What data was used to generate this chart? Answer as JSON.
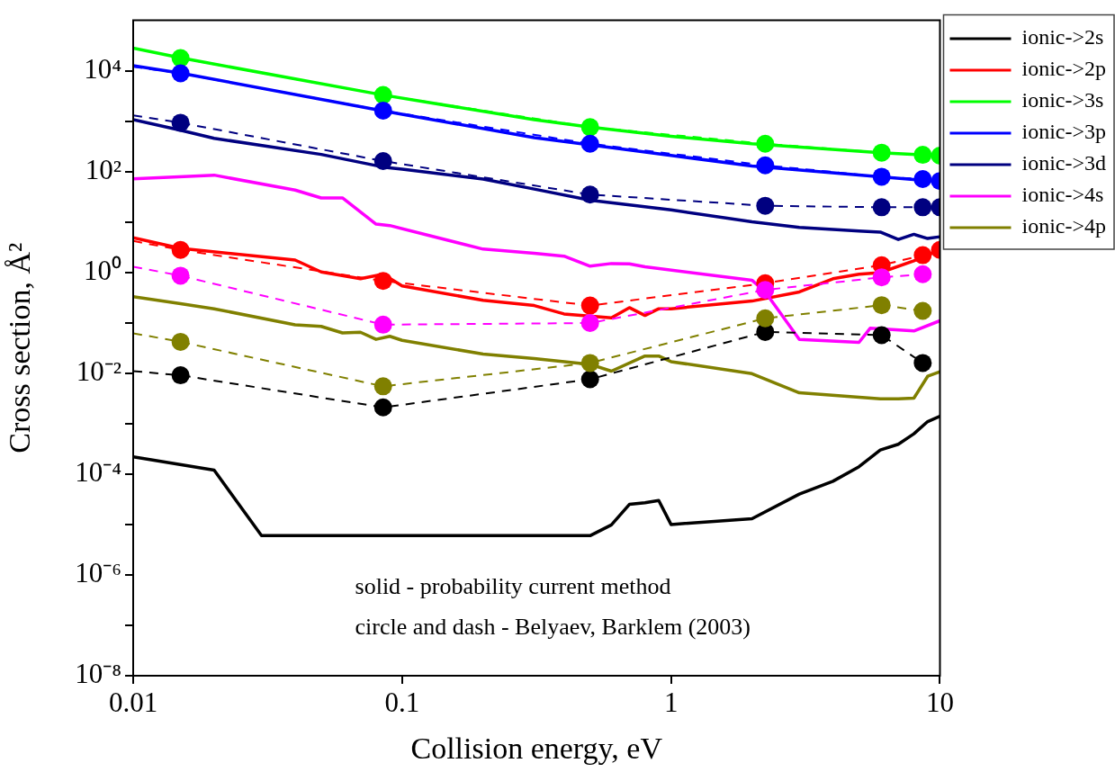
{
  "chart_data": {
    "type": "line",
    "xlabel": "Collision energy, eV",
    "ylabel": "Cross section, Å²",
    "log": "xy",
    "grid": false,
    "legend": "top right",
    "line_style": "solid",
    "xlim": [
      0.01,
      10
    ],
    "xticks": [
      0.01,
      0.1,
      1,
      10
    ],
    "ylim": [
      1e-08,
      100000
    ],
    "yticks": [
      {
        "value": 1e-08,
        "label": "10⁻⁸"
      },
      {
        "value": 1e-07,
        "label": null
      },
      {
        "value": 1e-06,
        "label": "10⁻⁶"
      },
      {
        "value": 1e-05,
        "label": null
      },
      {
        "value": 0.0001,
        "label": "10⁻⁴"
      },
      {
        "value": 0.001,
        "label": null
      },
      {
        "value": 0.01,
        "label": "10⁻²"
      },
      {
        "value": 0.1,
        "label": null
      },
      {
        "value": 1,
        "label": "10⁰"
      },
      {
        "value": 10,
        "label": null
      },
      {
        "value": 100,
        "label": "10²"
      },
      {
        "value": 1000,
        "label": null
      },
      {
        "value": 10000,
        "label": "10⁴"
      }
    ],
    "annotations": [
      "solid - probability current method",
      "circle and dash - Belyaev, Barklem (2003)"
    ],
    "series": [
      {
        "name": "ionic->2s",
        "color": "#000000",
        "type": "line",
        "marker": "none",
        "x": [
          0.01,
          0.02,
          0.03,
          0.5,
          0.6,
          0.7,
          0.8,
          0.9,
          1,
          2,
          3,
          4,
          5,
          6,
          7,
          8,
          9,
          10
        ],
        "values": [
          0.00022,
          0.00012,
          6e-06,
          6e-06,
          9.8e-06,
          2.5e-05,
          2.7e-05,
          3e-05,
          1e-05,
          1.3e-05,
          4e-05,
          7.2e-05,
          0.00014,
          0.0003,
          0.00039,
          0.00063,
          0.0011,
          0.0014
        ]
      },
      {
        "name": "ionic->2p",
        "color": "#ff0000",
        "type": "line",
        "marker": "none",
        "x": [
          0.01,
          0.015,
          0.04,
          0.05,
          0.07,
          0.085,
          0.1,
          0.2,
          0.31,
          0.4,
          0.6,
          0.7,
          0.8,
          0.9,
          1,
          2,
          3,
          4,
          5,
          6,
          8,
          10
        ],
        "values": [
          4.9,
          3.0,
          1.76,
          1.02,
          0.75,
          0.92,
          0.54,
          0.28,
          0.22,
          0.15,
          0.126,
          0.2,
          0.14,
          0.19,
          0.19,
          0.27,
          0.41,
          0.75,
          0.92,
          0.99,
          1.7,
          2.8
        ]
      },
      {
        "name": "ionic->3s",
        "color": "#00ff00",
        "type": "line",
        "marker": "none",
        "x": [
          0.01,
          0.015,
          0.085,
          0.31,
          0.5,
          1,
          2,
          6,
          10
        ],
        "values": [
          28000,
          18000,
          3300,
          1070,
          760,
          500,
          355,
          237,
          205
        ]
      },
      {
        "name": "ionic->3p",
        "color": "#0000ff",
        "type": "line",
        "marker": "none",
        "x": [
          0.01,
          0.015,
          0.085,
          0.31,
          0.5,
          1,
          2,
          6,
          10
        ],
        "values": [
          12600,
          9000,
          1600,
          470,
          340,
          209,
          129,
          79,
          63
        ]
      },
      {
        "name": "ionic->3d",
        "color": "#000080",
        "type": "line",
        "marker": "none",
        "x": [
          0.01,
          0.015,
          0.02,
          0.05,
          0.085,
          0.1,
          0.2,
          0.31,
          0.5,
          1,
          2,
          3,
          5,
          6,
          7,
          8,
          9,
          10
        ],
        "values": [
          1070,
          660,
          457,
          219,
          123,
          112,
          71,
          45,
          27,
          17.4,
          10.1,
          7.8,
          6.6,
          6.3,
          4.5,
          5.7,
          4.7,
          5.1
        ]
      },
      {
        "name": "ionic->4s",
        "color": "#ff00ff",
        "type": "line",
        "marker": "none",
        "x": [
          0.01,
          0.02,
          0.04,
          0.05,
          0.06,
          0.08,
          0.09,
          0.2,
          0.31,
          0.4,
          0.5,
          0.6,
          0.7,
          0.8,
          2,
          2.24,
          3,
          5,
          5.5,
          8,
          10
        ],
        "values": [
          72,
          85,
          43,
          30,
          30,
          9.1,
          8.5,
          2.9,
          2.4,
          2.1,
          1.33,
          1.5,
          1.48,
          1.29,
          0.7,
          0.41,
          0.047,
          0.041,
          0.078,
          0.069,
          0.11
        ]
      },
      {
        "name": "ionic->4p",
        "color": "#808000",
        "type": "line",
        "marker": "none",
        "x": [
          0.01,
          0.015,
          0.02,
          0.04,
          0.05,
          0.06,
          0.07,
          0.08,
          0.09,
          0.1,
          0.2,
          0.31,
          0.5,
          0.6,
          0.8,
          0.9,
          1,
          2,
          3,
          6,
          7,
          8,
          9,
          10
        ],
        "values": [
          0.33,
          0.24,
          0.19,
          0.091,
          0.085,
          0.063,
          0.065,
          0.047,
          0.054,
          0.045,
          0.024,
          0.0195,
          0.015,
          0.011,
          0.022,
          0.022,
          0.017,
          0.0098,
          0.0041,
          0.0031,
          0.0031,
          0.0032,
          0.0087,
          0.0107
        ]
      },
      {
        "color": "#000000",
        "type": "line",
        "line_style": "dashed",
        "marker": "none",
        "x": [
          0.01,
          0.015,
          0.085,
          0.5,
          2.24,
          6.07,
          8.63
        ],
        "values": [
          0.011,
          0.0091,
          0.0021,
          0.0076,
          0.066,
          0.057,
          0.016
        ]
      },
      {
        "color": "#ff0000",
        "type": "line",
        "line_style": "dashed",
        "marker": "none",
        "x": [
          0.01,
          0.015,
          0.085,
          0.5,
          2.24,
          6.07,
          8.63,
          10
        ],
        "values": [
          4.2,
          2.8,
          0.68,
          0.22,
          0.61,
          1.39,
          2.2,
          2.8
        ]
      },
      {
        "color": "#00ff00",
        "type": "line",
        "line_style": "dashed",
        "marker": "none",
        "x": [
          0.015,
          0.085,
          0.5,
          2.24,
          6.07,
          8.63,
          10
        ],
        "values": [
          17800,
          3300,
          760,
          357,
          237,
          215,
          207
        ]
      },
      {
        "color": "#0000ff",
        "type": "line",
        "line_style": "dashed",
        "marker": "none",
        "x": [
          0.01,
          0.015,
          0.085,
          0.5,
          2.24,
          6.07,
          8.63,
          10
        ],
        "values": [
          12000,
          8900,
          1620,
          357,
          133,
          79,
          71,
          65
        ]
      },
      {
        "color": "#000080",
        "type": "line",
        "line_style": "dashed",
        "marker": "none",
        "x": [
          0.01,
          0.015,
          0.085,
          0.5,
          2.24,
          6.07,
          8.63,
          10
        ],
        "values": [
          1300,
          930,
          162,
          35,
          21,
          19.6,
          19.6,
          19.6
        ]
      },
      {
        "color": "#ff00ff",
        "type": "line",
        "line_style": "dashed",
        "marker": "none",
        "x": [
          0.01,
          0.015,
          0.085,
          0.5,
          2.24,
          6.07,
          8.63
        ],
        "values": [
          1.3,
          0.86,
          0.092,
          0.099,
          0.45,
          0.8,
          0.92
        ]
      },
      {
        "color": "#808000",
        "type": "line",
        "line_style": "dashed",
        "marker": "none",
        "x": [
          0.01,
          0.015,
          0.085,
          0.5,
          2.24,
          6.07,
          8.63
        ],
        "values": [
          0.062,
          0.042,
          0.0055,
          0.016,
          0.123,
          0.224,
          0.173
        ]
      },
      {
        "color": "#000000",
        "type": "scatter",
        "marker": "circle",
        "x": [
          0.015,
          0.085,
          0.5,
          2.24,
          6.07,
          8.63
        ],
        "values": [
          0.0091,
          0.0021,
          0.0076,
          0.066,
          0.057,
          0.016
        ]
      },
      {
        "color": "#ff0000",
        "type": "scatter",
        "marker": "circle",
        "x": [
          0.015,
          0.085,
          0.5,
          2.24,
          6.07,
          8.63,
          10
        ],
        "values": [
          2.8,
          0.68,
          0.22,
          0.61,
          1.39,
          2.2,
          2.8
        ]
      },
      {
        "color": "#00ff00",
        "type": "scatter",
        "marker": "circle",
        "x": [
          0.015,
          0.085,
          0.5,
          2.24,
          6.07,
          8.63,
          10
        ],
        "values": [
          17800,
          3300,
          760,
          357,
          237,
          215,
          207
        ]
      },
      {
        "color": "#0000ff",
        "type": "scatter",
        "marker": "circle",
        "x": [
          0.015,
          0.085,
          0.5,
          2.24,
          6.07,
          8.63,
          10
        ],
        "values": [
          8900,
          1620,
          357,
          133,
          79,
          71,
          65
        ]
      },
      {
        "color": "#000080",
        "type": "scatter",
        "marker": "circle",
        "x": [
          0.015,
          0.085,
          0.5,
          2.24,
          6.07,
          8.63,
          10
        ],
        "values": [
          930,
          162,
          35,
          21,
          19.6,
          19.6,
          19.6
        ]
      },
      {
        "color": "#ff00ff",
        "type": "scatter",
        "marker": "circle",
        "x": [
          0.015,
          0.085,
          0.5,
          2.24,
          6.07,
          8.63
        ],
        "values": [
          0.86,
          0.092,
          0.099,
          0.45,
          0.8,
          0.92
        ]
      },
      {
        "color": "#808000",
        "type": "scatter",
        "marker": "circle",
        "x": [
          0.015,
          0.085,
          0.5,
          2.24,
          6.07,
          8.63
        ],
        "values": [
          0.042,
          0.0055,
          0.016,
          0.123,
          0.224,
          0.173
        ]
      }
    ]
  }
}
